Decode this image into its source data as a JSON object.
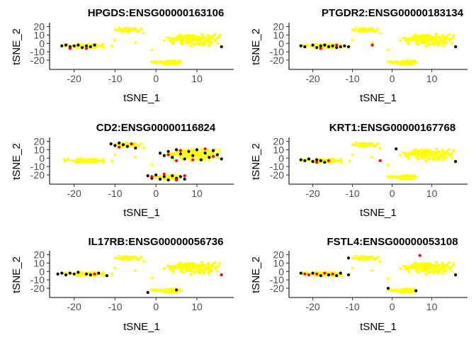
{
  "figure": {
    "colors": {
      "low": "#ffff00",
      "mid": "#ff0000",
      "high": "#000000",
      "background": "#ffffff"
    }
  },
  "chart_data": [
    {
      "type": "scatter",
      "title": "HPGDS:ENSG00000163106",
      "xlabel": "tSNE_1",
      "ylabel": "tSNE_2",
      "xlim": [
        -26,
        19
      ],
      "ylim": [
        -31,
        23
      ],
      "x_ticks": [
        -20,
        -10,
        0,
        10
      ],
      "y_ticks": [
        20,
        10,
        0,
        -10,
        -20
      ],
      "grid": false,
      "clusters": {
        "left": [
          {
            "x": -23,
            "y": -3,
            "level": "high"
          },
          {
            "x": -22,
            "y": -2,
            "level": "high"
          },
          {
            "x": -21,
            "y": -4,
            "level": "high"
          },
          {
            "x": -20,
            "y": -3,
            "level": "high"
          },
          {
            "x": -19,
            "y": -2,
            "level": "high"
          },
          {
            "x": -18,
            "y": -5,
            "level": "high"
          },
          {
            "x": -17,
            "y": -3,
            "level": "high"
          },
          {
            "x": -16,
            "y": -4,
            "level": "high"
          },
          {
            "x": -21,
            "y": -6,
            "level": "mid"
          },
          {
            "x": -17,
            "y": -6,
            "level": "mid"
          },
          {
            "x": -15,
            "y": -2,
            "level": "high"
          }
        ],
        "upper": [],
        "right": [
          {
            "x": 16,
            "y": -4,
            "level": "high"
          }
        ],
        "lower": []
      }
    },
    {
      "type": "scatter",
      "title": "PTGDR2:ENSG00000183134",
      "xlabel": "tSNE_1",
      "ylabel": "tSNE_2",
      "xlim": [
        -26,
        19
      ],
      "ylim": [
        -31,
        23
      ],
      "x_ticks": [
        -20,
        -10,
        0,
        10
      ],
      "y_ticks": [
        20,
        10,
        0,
        -10,
        -20
      ],
      "grid": false,
      "clusters": {
        "left": [
          {
            "x": -23,
            "y": -3,
            "level": "high"
          },
          {
            "x": -22,
            "y": -4,
            "level": "high"
          },
          {
            "x": -20,
            "y": -2,
            "level": "high"
          },
          {
            "x": -19,
            "y": -5,
            "level": "high"
          },
          {
            "x": -18,
            "y": -3,
            "level": "high"
          },
          {
            "x": -17,
            "y": -2,
            "level": "high"
          },
          {
            "x": -16,
            "y": -4,
            "level": "high"
          },
          {
            "x": -15,
            "y": -3,
            "level": "high"
          },
          {
            "x": -14,
            "y": -5,
            "level": "high"
          },
          {
            "x": -13,
            "y": -4,
            "level": "high"
          },
          {
            "x": -12,
            "y": -3,
            "level": "high"
          },
          {
            "x": -11,
            "y": -4,
            "level": "high"
          },
          {
            "x": -18,
            "y": -6,
            "level": "mid"
          },
          {
            "x": -14,
            "y": -2,
            "level": "mid"
          }
        ],
        "upper": [],
        "right": [
          {
            "x": 16,
            "y": -4,
            "level": "high"
          }
        ],
        "lower": [],
        "isolated": [
          {
            "x": -5,
            "y": -2,
            "level": "mid"
          }
        ]
      }
    },
    {
      "type": "scatter",
      "title": "CD2:ENSG00000116824",
      "xlabel": "tSNE_1",
      "ylabel": "tSNE_2",
      "xlim": [
        -26,
        19
      ],
      "ylim": [
        -31,
        23
      ],
      "x_ticks": [
        -20,
        -10,
        0,
        10
      ],
      "y_ticks": [
        20,
        10,
        0,
        -10,
        -20
      ],
      "grid": false,
      "clusters": {
        "left": [],
        "upper": [
          {
            "x": -11,
            "y": 17,
            "level": "high"
          },
          {
            "x": -10,
            "y": 15,
            "level": "high"
          },
          {
            "x": -9,
            "y": 18,
            "level": "high"
          },
          {
            "x": -8,
            "y": 16,
            "level": "high"
          },
          {
            "x": -7,
            "y": 14,
            "level": "high"
          },
          {
            "x": -6,
            "y": 17,
            "level": "mid"
          },
          {
            "x": -9,
            "y": 13,
            "level": "mid"
          },
          {
            "x": -5,
            "y": 12,
            "level": "high"
          }
        ],
        "right": [
          {
            "x": 1,
            "y": 6,
            "level": "high"
          },
          {
            "x": 2,
            "y": 3,
            "level": "high"
          },
          {
            "x": 3,
            "y": 8,
            "level": "high"
          },
          {
            "x": 4,
            "y": 1,
            "level": "high"
          },
          {
            "x": 5,
            "y": 10,
            "level": "high"
          },
          {
            "x": 6,
            "y": 5,
            "level": "high"
          },
          {
            "x": 7,
            "y": -1,
            "level": "high"
          },
          {
            "x": 8,
            "y": 8,
            "level": "high"
          },
          {
            "x": 9,
            "y": 3,
            "level": "high"
          },
          {
            "x": 10,
            "y": 10,
            "level": "high"
          },
          {
            "x": 11,
            "y": -2,
            "level": "high"
          },
          {
            "x": 12,
            "y": 6,
            "level": "high"
          },
          {
            "x": 13,
            "y": 1,
            "level": "high"
          },
          {
            "x": 14,
            "y": 9,
            "level": "high"
          },
          {
            "x": 15,
            "y": 4,
            "level": "high"
          },
          {
            "x": 16,
            "y": -1,
            "level": "high"
          },
          {
            "x": 3,
            "y": 4,
            "level": "mid"
          },
          {
            "x": 6,
            "y": 9,
            "level": "mid"
          },
          {
            "x": 9,
            "y": -2,
            "level": "mid"
          },
          {
            "x": 12,
            "y": 11,
            "level": "mid"
          },
          {
            "x": 14,
            "y": 2,
            "level": "mid"
          },
          {
            "x": 5,
            "y": -3,
            "level": "mid"
          }
        ],
        "lower": [
          {
            "x": -2,
            "y": -21,
            "level": "high"
          },
          {
            "x": -1,
            "y": -24,
            "level": "high"
          },
          {
            "x": 0,
            "y": -20,
            "level": "high"
          },
          {
            "x": 1,
            "y": -25,
            "level": "high"
          },
          {
            "x": 2,
            "y": -22,
            "level": "high"
          },
          {
            "x": 3,
            "y": -26,
            "level": "high"
          },
          {
            "x": 4,
            "y": -21,
            "level": "high"
          },
          {
            "x": 5,
            "y": -24,
            "level": "high"
          },
          {
            "x": 6,
            "y": -22,
            "level": "high"
          },
          {
            "x": 7,
            "y": -25,
            "level": "high"
          },
          {
            "x": -1,
            "y": -22,
            "level": "mid"
          },
          {
            "x": 2,
            "y": -19,
            "level": "mid"
          },
          {
            "x": 5,
            "y": -26,
            "level": "mid"
          },
          {
            "x": 7,
            "y": -21,
            "level": "mid"
          }
        ]
      }
    },
    {
      "type": "scatter",
      "title": "KRT1:ENSG00000167768",
      "xlabel": "tSNE_1",
      "ylabel": "tSNE_2",
      "xlim": [
        -26,
        19
      ],
      "ylim": [
        -31,
        23
      ],
      "x_ticks": [
        -20,
        -10,
        0,
        10
      ],
      "y_ticks": [
        20,
        10,
        0,
        -10,
        -20
      ],
      "grid": false,
      "clusters": {
        "left": [
          {
            "x": -23,
            "y": -2,
            "level": "high"
          },
          {
            "x": -22,
            "y": -3,
            "level": "high"
          },
          {
            "x": -21,
            "y": -1,
            "level": "high"
          },
          {
            "x": -20,
            "y": -4,
            "level": "high"
          },
          {
            "x": -19,
            "y": -2,
            "level": "high"
          },
          {
            "x": -18,
            "y": -3,
            "level": "high"
          },
          {
            "x": -17,
            "y": -5,
            "level": "high"
          },
          {
            "x": -19,
            "y": -5,
            "level": "mid"
          },
          {
            "x": -16,
            "y": -3,
            "level": "mid"
          }
        ],
        "upper": [],
        "right": [
          {
            "x": 16,
            "y": -4,
            "level": "high"
          }
        ],
        "lower": [],
        "isolated": [
          {
            "x": 1,
            "y": 11,
            "level": "high"
          },
          {
            "x": -3,
            "y": -3,
            "level": "mid"
          }
        ]
      }
    },
    {
      "type": "scatter",
      "title": "IL17RB:ENSG00000056736",
      "xlabel": "tSNE_1",
      "ylabel": "tSNE_2",
      "xlim": [
        -26,
        19
      ],
      "ylim": [
        -31,
        23
      ],
      "x_ticks": [
        -20,
        -10,
        0,
        10
      ],
      "y_ticks": [
        20,
        10,
        0,
        -10,
        -20
      ],
      "grid": false,
      "clusters": {
        "left": [
          {
            "x": -24,
            "y": -3,
            "level": "high"
          },
          {
            "x": -23,
            "y": -2,
            "level": "high"
          },
          {
            "x": -22,
            "y": -4,
            "level": "high"
          },
          {
            "x": -21,
            "y": -2,
            "level": "high"
          },
          {
            "x": -20,
            "y": -3,
            "level": "high"
          },
          {
            "x": -19,
            "y": -1,
            "level": "high"
          },
          {
            "x": -17,
            "y": -3,
            "level": "high"
          },
          {
            "x": -16,
            "y": -4,
            "level": "high"
          },
          {
            "x": -14,
            "y": -2,
            "level": "high"
          },
          {
            "x": -12,
            "y": -5,
            "level": "high"
          },
          {
            "x": -15,
            "y": -3,
            "level": "mid"
          }
        ],
        "upper": [],
        "right": [
          {
            "x": 16,
            "y": -4,
            "level": "mid"
          }
        ],
        "lower": [
          {
            "x": 5,
            "y": -22,
            "level": "high"
          },
          {
            "x": -2,
            "y": -25,
            "level": "high"
          }
        ]
      }
    },
    {
      "type": "scatter",
      "title": "FSTL4:ENSG00000053108",
      "xlabel": "tSNE_1",
      "ylabel": "tSNE_2",
      "xlim": [
        -26,
        19
      ],
      "ylim": [
        -31,
        23
      ],
      "x_ticks": [
        -20,
        -10,
        0,
        10
      ],
      "y_ticks": [
        20,
        10,
        0,
        -10,
        -20
      ],
      "grid": false,
      "clusters": {
        "left": [
          {
            "x": -23,
            "y": -2,
            "level": "high"
          },
          {
            "x": -22,
            "y": -3,
            "level": "mid"
          },
          {
            "x": -21,
            "y": -4,
            "level": "mid"
          },
          {
            "x": -20,
            "y": -2,
            "level": "high"
          },
          {
            "x": -19,
            "y": -3,
            "level": "mid"
          },
          {
            "x": -18,
            "y": -5,
            "level": "high"
          },
          {
            "x": -17,
            "y": -2,
            "level": "mid"
          },
          {
            "x": -16,
            "y": -4,
            "level": "high"
          },
          {
            "x": -15,
            "y": -3,
            "level": "mid"
          },
          {
            "x": -14,
            "y": -5,
            "level": "high"
          },
          {
            "x": -13,
            "y": -2,
            "level": "high"
          },
          {
            "x": -11,
            "y": -4,
            "level": "high"
          }
        ],
        "upper": [
          {
            "x": -11,
            "y": 16,
            "level": "high"
          }
        ],
        "right": [
          {
            "x": 7,
            "y": 19,
            "level": "mid"
          },
          {
            "x": 16,
            "y": -4,
            "level": "high"
          }
        ],
        "lower": [
          {
            "x": -1,
            "y": -20,
            "level": "high"
          },
          {
            "x": 6,
            "y": -23,
            "level": "high"
          }
        ]
      }
    }
  ]
}
